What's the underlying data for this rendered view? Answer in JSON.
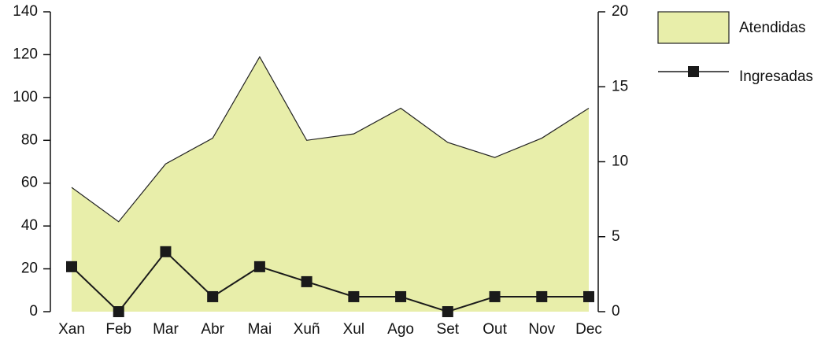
{
  "chart_data": {
    "type": "area",
    "categories": [
      "Xan",
      "Feb",
      "Mar",
      "Abr",
      "Mai",
      "Xuñ",
      "Xul",
      "Ago",
      "Set",
      "Out",
      "Nov",
      "Dec"
    ],
    "series": [
      {
        "name": "Atendidas",
        "type": "area",
        "color": "#e8eeaa",
        "values": [
          58,
          42,
          69,
          81,
          119,
          80,
          83,
          95,
          79,
          72,
          81,
          95
        ]
      },
      {
        "name": "Ingresadas",
        "type": "line",
        "axis": "y2",
        "color": "#1a1a1a",
        "values": [
          3,
          0,
          4,
          1,
          3,
          2,
          1,
          1,
          0,
          1,
          1,
          1
        ]
      }
    ],
    "ylim": [
      0,
      140
    ],
    "yticks": [
      0,
      20,
      40,
      60,
      80,
      100,
      120,
      140
    ],
    "y2lim": [
      0,
      20
    ],
    "y2ticks": [
      0,
      5,
      10,
      15,
      20
    ],
    "legend": "top-right"
  }
}
